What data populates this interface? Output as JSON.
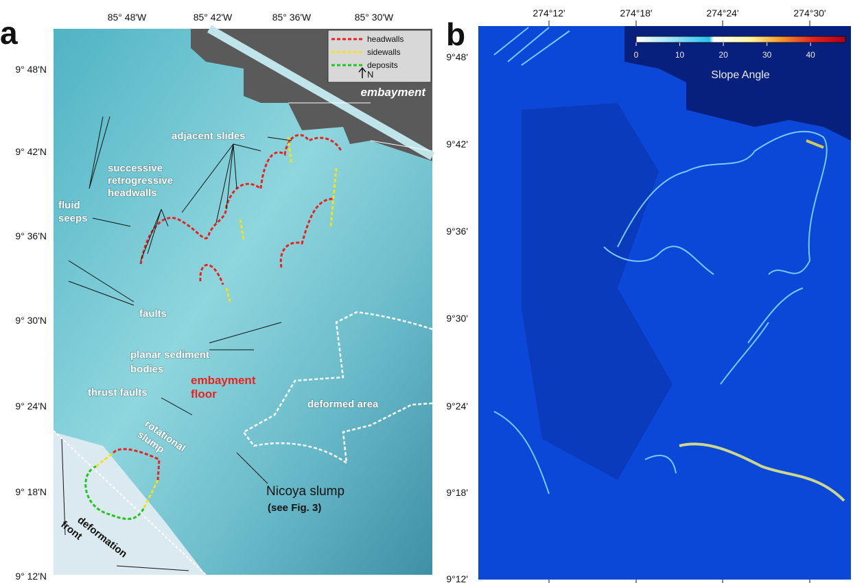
{
  "panel_a": {
    "label": "a",
    "lon_labels": [
      "85° 48'W",
      "85° 42'W",
      "85° 36'W",
      "85° 30'W"
    ],
    "lat_labels": [
      "9° 48'N",
      "9° 42'N",
      "9° 36'N",
      "9° 30'N",
      "9° 24'N",
      "9° 18'N",
      "9° 12'N"
    ],
    "legend": [
      {
        "label": "headwalls",
        "color": "#e8231e"
      },
      {
        "label": "sidewalls",
        "color": "#f2e21a"
      },
      {
        "label": "deposits",
        "color": "#22c41e"
      }
    ],
    "north": "N",
    "annotations": {
      "embayment": "embayment",
      "adjacent_slides": "adjacent slides",
      "headwalls": [
        "successive",
        "retrogressive",
        "headwalls"
      ],
      "fluid_seeps": [
        "fluid",
        "seeps"
      ],
      "faults": "faults",
      "planar": [
        "planar sediment",
        "bodies"
      ],
      "floor": [
        "embayment",
        "floor"
      ],
      "thrust_faults": "thrust faults",
      "rotational": [
        "rotational",
        "slump"
      ],
      "deformed": "deformed area",
      "nicoya": "Nicoya slump",
      "see_fig": "(see Fig. 3)",
      "deformation": [
        "deformation",
        "front"
      ]
    }
  },
  "panel_b": {
    "label": "b",
    "lon_labels": [
      "274°12'",
      "274°18'",
      "274°24'",
      "274°30'"
    ],
    "lat_labels": [
      "9°48'",
      "9°42'",
      "9°36'",
      "9°30'",
      "9°24'",
      "9°18'",
      "9°12'"
    ],
    "colorbar": {
      "title": "Slope Angle",
      "ticks": [
        0,
        10,
        20,
        30,
        40
      ],
      "lim": [
        0,
        48
      ]
    }
  }
}
